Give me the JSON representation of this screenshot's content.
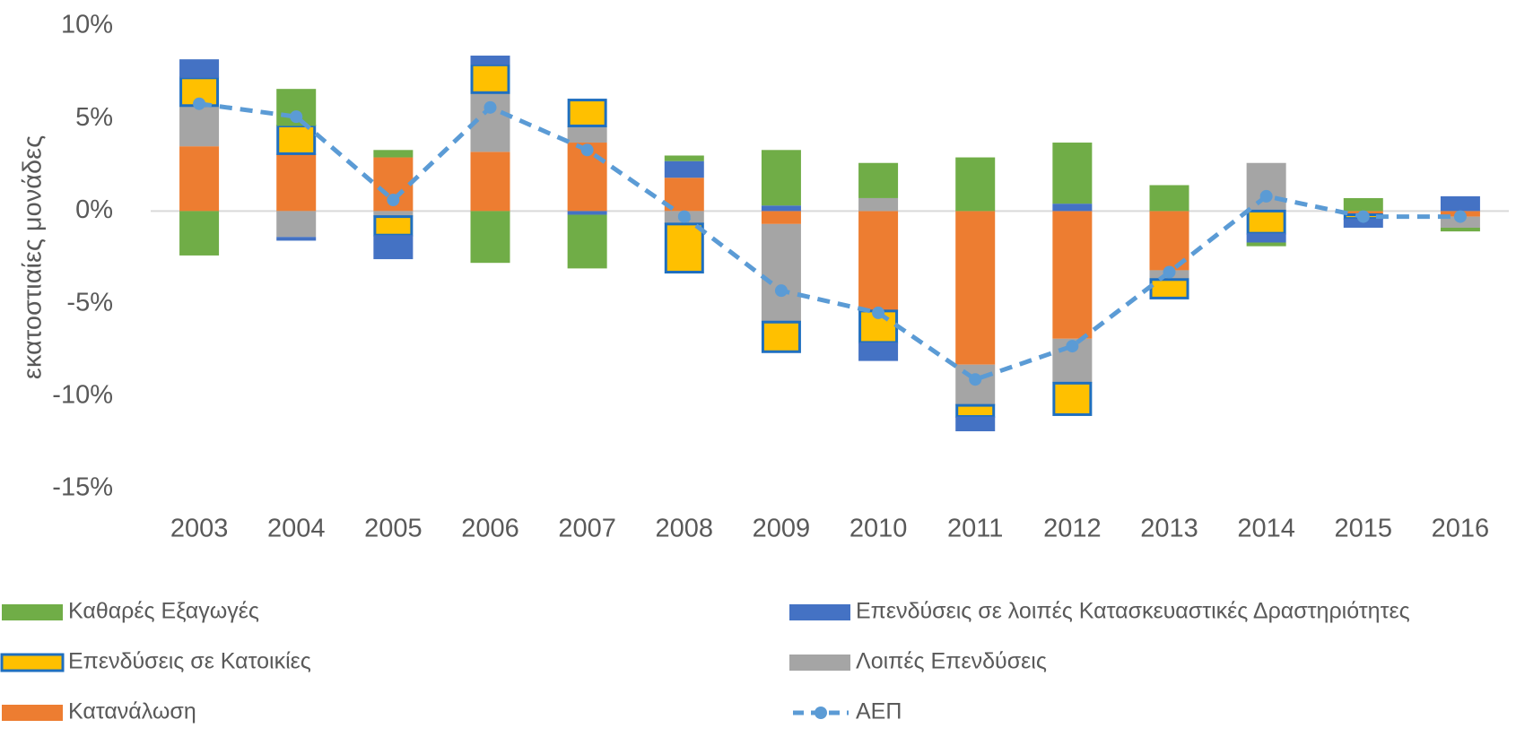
{
  "chart_data": {
    "type": "bar",
    "ylabel": "εκατοστιαίες μονάδες",
    "categories": [
      "2003",
      "2004",
      "2005",
      "2006",
      "2007",
      "2008",
      "2009",
      "2010",
      "2011",
      "2012",
      "2013",
      "2014",
      "2015",
      "2016"
    ],
    "ylim": [
      -15,
      10
    ],
    "yticks": [
      {
        "value": -15,
        "label": "-15%"
      },
      {
        "value": -10,
        "label": "-10%"
      },
      {
        "value": -5,
        "label": "-5%"
      },
      {
        "value": 0,
        "label": "0%"
      },
      {
        "value": 5,
        "label": "5%"
      },
      {
        "value": 10,
        "label": "10%"
      }
    ],
    "stacked": true,
    "series": [
      {
        "name": "Καθαρές Εξαγωγές",
        "type": "bar",
        "color": "#70ad47",
        "values": [
          -2.4,
          2.0,
          0.4,
          -2.8,
          -2.9,
          0.3,
          3.0,
          1.9,
          2.9,
          3.3,
          1.4,
          -0.2,
          0.7,
          -0.2
        ]
      },
      {
        "name": "Επενδύσεις σε λοιπές Κατασκευαστικές Δραστηριότητες",
        "type": "bar",
        "color": "#4472c4",
        "values": [
          1.0,
          -0.2,
          -1.3,
          0.5,
          -0.2,
          0.9,
          0.3,
          -1.0,
          -0.8,
          0.4,
          0,
          -0.5,
          -0.5,
          0.8
        ]
      },
      {
        "name": "Επενδύσεις σε Κατοικίες",
        "type": "bar",
        "color": "#ffc000",
        "edge_color": "#1f6fbf",
        "values": [
          1.5,
          1.5,
          -1.0,
          1.5,
          1.4,
          -2.6,
          -1.6,
          -1.7,
          -0.6,
          -1.7,
          -1.0,
          -1.2,
          -0.2,
          0
        ]
      },
      {
        "name": "Λοιπές Επενδύσεις",
        "type": "bar",
        "color": "#a5a5a5",
        "values": [
          2.2,
          -1.4,
          -0.3,
          3.2,
          0.9,
          -0.7,
          -5.3,
          0.7,
          -2.2,
          -2.4,
          -0.5,
          2.6,
          0,
          -0.6
        ]
      },
      {
        "name": "Κατανάλωση",
        "type": "bar",
        "color": "#ed7d31",
        "values": [
          3.5,
          3.1,
          2.9,
          3.2,
          3.7,
          1.8,
          -0.7,
          -5.4,
          -8.3,
          -6.9,
          -3.2,
          0,
          -0.2,
          -0.3
        ]
      },
      {
        "name": "ΑΕΠ",
        "type": "line",
        "color": "#5b9bd5",
        "values": [
          5.8,
          5.1,
          0.6,
          5.6,
          3.3,
          -0.3,
          -4.3,
          -5.5,
          -9.1,
          -7.3,
          -3.3,
          0.8,
          -0.3,
          -0.3
        ]
      }
    ]
  }
}
